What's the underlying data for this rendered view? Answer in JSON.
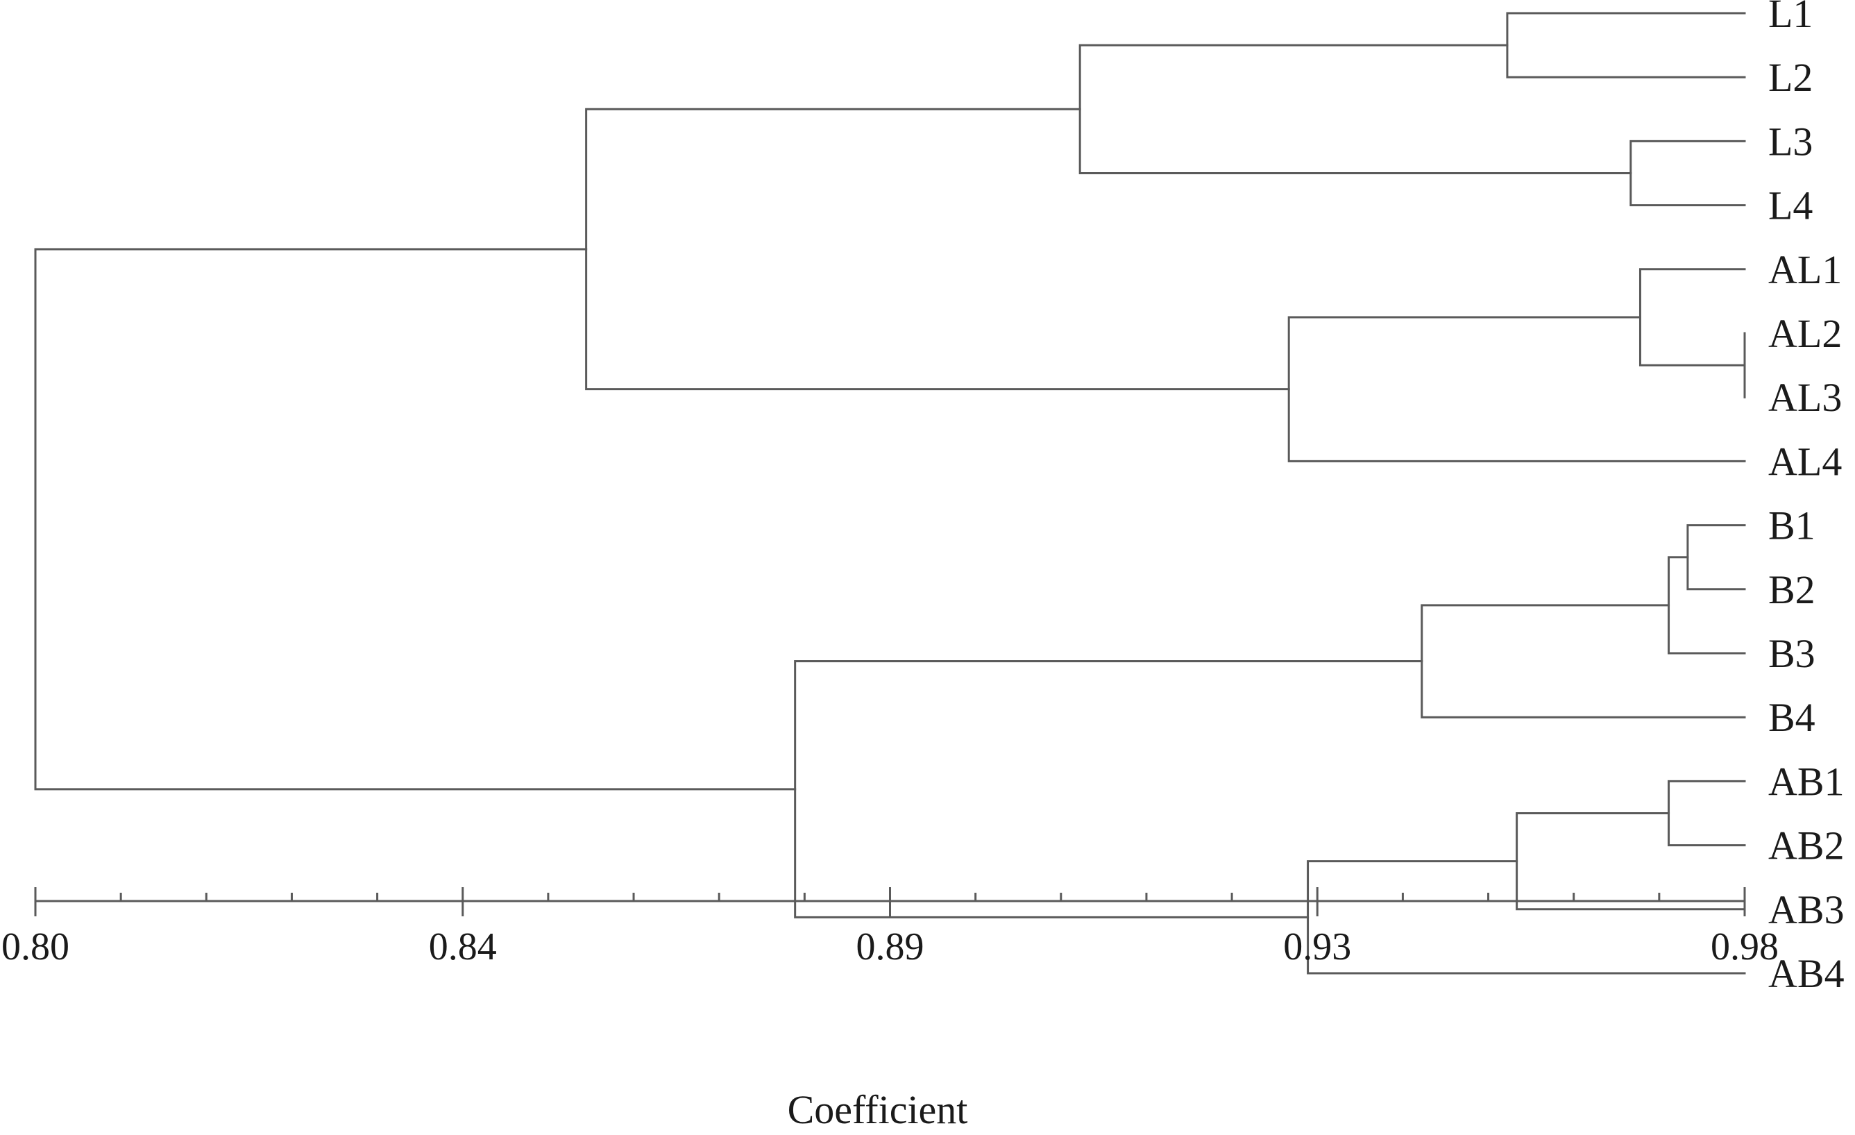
{
  "chart_data": {
    "type": "dendrogram",
    "xlabel": "Coefficient",
    "xlim": [
      0.8,
      0.98
    ],
    "tick_labels": [
      "0.80",
      "0.84",
      "0.89",
      "0.93",
      "0.98"
    ],
    "tick_values": [
      0.8,
      0.845,
      0.89,
      0.935,
      0.98
    ],
    "minor_ticks_per_interval": 5,
    "leaves": [
      "L1",
      "L2",
      "L3",
      "L4",
      "AL1",
      "AL2",
      "AL3",
      "AL4",
      "B1",
      "B2",
      "B3",
      "B4",
      "AB1",
      "AB2",
      "AB3",
      "AB4"
    ],
    "merges": [
      {
        "id": "n1",
        "children": [
          "AL2",
          "AL3"
        ],
        "height": 0.98
      },
      {
        "id": "n2",
        "children": [
          "B1",
          "B2"
        ],
        "height": 0.974
      },
      {
        "id": "n3",
        "children": [
          "n2",
          "B3"
        ],
        "height": 0.972
      },
      {
        "id": "n4",
        "children": [
          "AB1",
          "AB2"
        ],
        "height": 0.972
      },
      {
        "id": "n5",
        "children": [
          "AL1",
          "n1"
        ],
        "height": 0.969
      },
      {
        "id": "n6",
        "children": [
          "L3",
          "L4"
        ],
        "height": 0.968
      },
      {
        "id": "n7",
        "children": [
          "n4",
          "AB3"
        ],
        "height": 0.956
      },
      {
        "id": "n8",
        "children": [
          "L1",
          "L2"
        ],
        "height": 0.955
      },
      {
        "id": "n9",
        "children": [
          "n3",
          "B4"
        ],
        "height": 0.946
      },
      {
        "id": "n10",
        "children": [
          "n7",
          "AB4"
        ],
        "height": 0.934
      },
      {
        "id": "n11",
        "children": [
          "n5",
          "AL4"
        ],
        "height": 0.932
      },
      {
        "id": "n12",
        "children": [
          "n8",
          "n6"
        ],
        "height": 0.91
      },
      {
        "id": "n13",
        "children": [
          "n9",
          "n10"
        ],
        "height": 0.88
      },
      {
        "id": "n14",
        "children": [
          "n12",
          "n11"
        ],
        "height": 0.858
      },
      {
        "id": "n15",
        "children": [
          "n14",
          "n13"
        ],
        "height": 0.8
      }
    ]
  }
}
